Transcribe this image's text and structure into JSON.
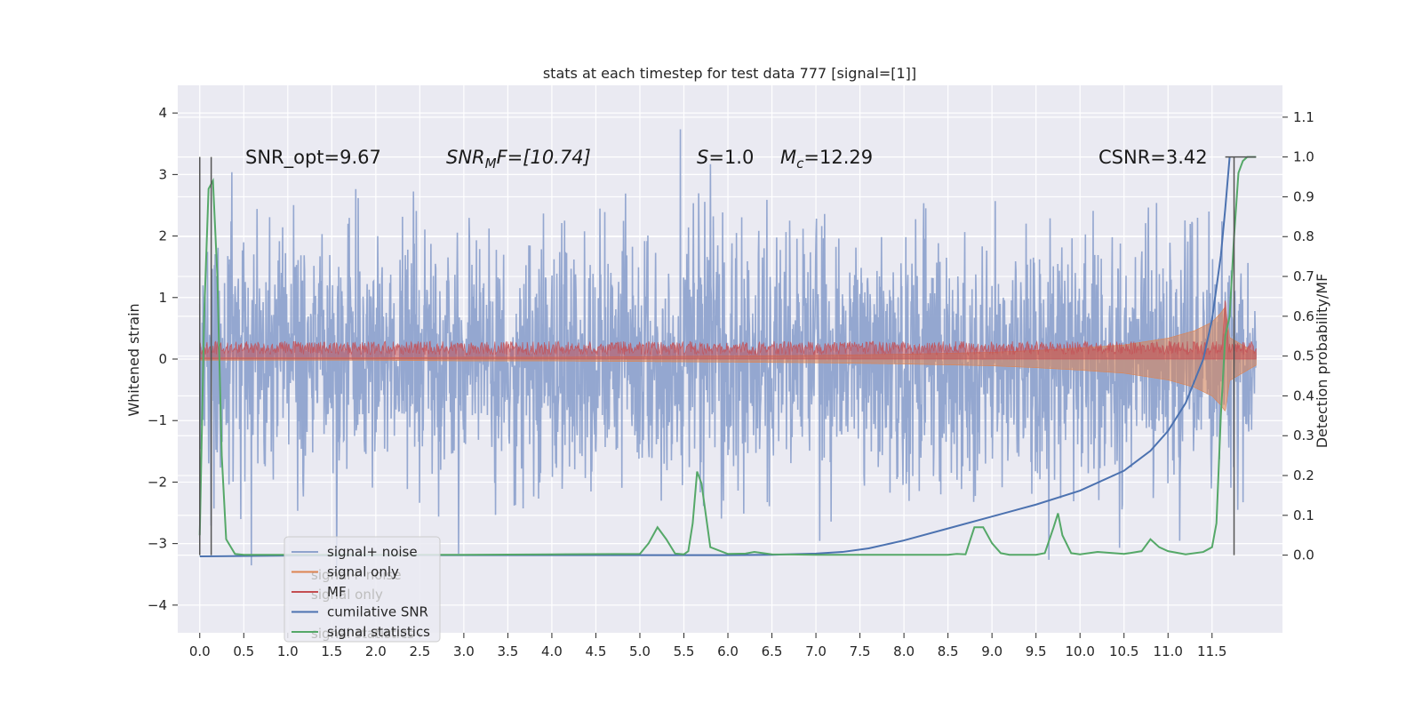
{
  "chart_data": {
    "type": "line",
    "title": "stats at each timestep for test data 777 [signal=[1]]",
    "xlabel": "",
    "ylabel": "Whitened strain",
    "y2label": "Detection probability/MF",
    "xlim": [
      -0.25,
      12.3
    ],
    "ylim": [
      -4.45,
      4.45
    ],
    "y2lim": [
      -0.195,
      1.18
    ],
    "x_ticks": [
      "0.0",
      "0.5",
      "1.0",
      "1.5",
      "2.0",
      "2.5",
      "3.0",
      "3.5",
      "4.0",
      "4.5",
      "5.0",
      "5.5",
      "6.0",
      "6.5",
      "7.0",
      "7.5",
      "8.0",
      "8.5",
      "9.0",
      "9.5",
      "10.0",
      "10.5",
      "11.0",
      "11.5"
    ],
    "y_ticks": [
      "4",
      "3",
      "2",
      "1",
      "0",
      "−1",
      "−2",
      "−3",
      "−4"
    ],
    "y2_ticks": [
      "1.1",
      "1.0",
      "0.9",
      "0.8",
      "0.7",
      "0.6",
      "0.5",
      "0.4",
      "0.3",
      "0.2",
      "0.1",
      "0.0"
    ],
    "grid": true,
    "legend_placement": "lower-left",
    "annotations": {
      "snr_opt": "SNR_opt=9.67",
      "snr_mf_prefix": "SNR",
      "snr_mf_sub": "M",
      "snr_mf_suffix": "F=[10.74]",
      "s_prefix": "S",
      "s_suffix": "=1.0",
      "mc_prefix": "M",
      "mc_sub": "c",
      "mc_suffix": "=12.29",
      "csnr": "CSNR=3.42"
    },
    "series": [
      {
        "name": "signal+ noise",
        "color": "#8fa3cd",
        "axis": "left",
        "kind": "noise",
        "x_range": [
          0.0,
          12.0
        ],
        "sigma": 1.0
      },
      {
        "name": "signal only",
        "color": "#dd8452",
        "axis": "left",
        "kind": "chirp-envelope",
        "x": [
          0,
          1,
          2,
          3,
          4,
          5,
          6,
          7,
          8,
          9,
          9.5,
          10,
          10.5,
          11,
          11.3,
          11.5,
          11.6,
          11.65,
          11.7,
          12
        ],
        "envelope": [
          0.02,
          0.02,
          0.02,
          0.03,
          0.03,
          0.04,
          0.05,
          0.06,
          0.08,
          0.11,
          0.14,
          0.18,
          0.23,
          0.34,
          0.46,
          0.6,
          0.75,
          0.85,
          0.35,
          0.1
        ]
      },
      {
        "name": "MF",
        "color": "#c44e52",
        "axis": "left",
        "kind": "band",
        "x_range": [
          0.0,
          12.0
        ],
        "level": 0.18,
        "peak_x": 11.65,
        "peak_y": 1.0
      },
      {
        "name": "cumilative SNR",
        "color": "#4c72b0",
        "axis": "right",
        "x": [
          0.0,
          1,
          2,
          3,
          4,
          5,
          6,
          6.5,
          7,
          7.3,
          7.6,
          8.0,
          8.5,
          9.0,
          9.5,
          10.0,
          10.5,
          10.8,
          11.0,
          11.2,
          11.4,
          11.5,
          11.6,
          11.65,
          11.7
        ],
        "y": [
          -0.003,
          -0.001,
          0,
          0,
          0,
          0,
          0,
          0.001,
          0.004,
          0.008,
          0.017,
          0.037,
          0.067,
          0.097,
          0.127,
          0.162,
          0.212,
          0.262,
          0.312,
          0.382,
          0.492,
          0.592,
          0.752,
          0.87,
          1.0
        ]
      },
      {
        "name": "signal statistics",
        "color": "#55a868",
        "axis": "right",
        "x": [
          0.0,
          0.05,
          0.1,
          0.15,
          0.2,
          0.25,
          0.3,
          0.4,
          0.5,
          1,
          2,
          3,
          4,
          5,
          5.1,
          5.2,
          5.3,
          5.4,
          5.5,
          5.55,
          5.6,
          5.65,
          5.7,
          5.8,
          6,
          6.2,
          6.3,
          6.5,
          7,
          8,
          8.5,
          8.6,
          8.7,
          8.8,
          8.9,
          9.0,
          9.1,
          9.2,
          9.5,
          9.6,
          9.7,
          9.75,
          9.8,
          9.9,
          10,
          10.2,
          10.5,
          10.7,
          10.8,
          10.9,
          11,
          11.2,
          11.4,
          11.5,
          11.55,
          11.6,
          11.65,
          11.7,
          11.75,
          11.8,
          11.85,
          11.9,
          11.95,
          12.0
        ],
        "y": [
          0.05,
          0.6,
          0.92,
          0.94,
          0.7,
          0.25,
          0.04,
          0.003,
          0.001,
          0.001,
          0.001,
          0.001,
          0.002,
          0.003,
          0.03,
          0.07,
          0.04,
          0.004,
          0.002,
          0.01,
          0.08,
          0.21,
          0.18,
          0.02,
          0.003,
          0.004,
          0.008,
          0.002,
          0.001,
          0.001,
          0.001,
          0.003,
          0.002,
          0.07,
          0.07,
          0.03,
          0.005,
          0.001,
          0.001,
          0.005,
          0.07,
          0.105,
          0.05,
          0.005,
          0.002,
          0.008,
          0.003,
          0.01,
          0.04,
          0.02,
          0.01,
          0.002,
          0.008,
          0.02,
          0.08,
          0.35,
          0.55,
          0.6,
          0.8,
          0.96,
          0.99,
          1.0,
          1.0,
          1.0
        ]
      }
    ]
  }
}
